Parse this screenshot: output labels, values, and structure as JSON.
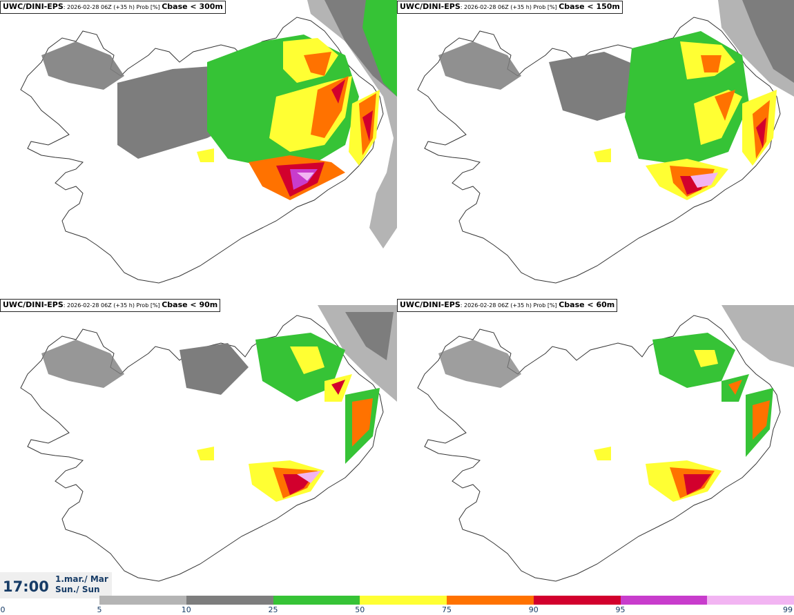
{
  "panels": [
    {
      "model": "UWC/DINI-EPS",
      "run_info": ": 2026-02-28 06Z (+35 h) Prob [%]",
      "variable": "Cbase < 300m"
    },
    {
      "model": "UWC/DINI-EPS",
      "run_info": ": 2026-02-28 06Z (+35 h) Prob [%]",
      "variable": "Cbase < 150m"
    },
    {
      "model": "UWC/DINI-EPS",
      "run_info": ": 2026-02-28 06Z (+35 h) Prob [%]",
      "variable": "Cbase < 90m"
    },
    {
      "model": "UWC/DINI-EPS",
      "run_info": ": 2026-02-28 06Z (+35 h) Prob [%]",
      "variable": "Cbase < 60m"
    }
  ],
  "valid_time": {
    "time": "17:00",
    "date_line1": "1.mar./ Mar",
    "date_line2": "Sun./ Sun"
  },
  "colorbar": {
    "labels": [
      "0",
      "5",
      "10",
      "25",
      "50",
      "75",
      "90",
      "95",
      "99"
    ],
    "colors": [
      "#b4b4b4",
      "#7d7d7d",
      "#36c336",
      "#ffff33",
      "#ff7200",
      "#d2002d",
      "#c83ccc",
      "#f2b4f2"
    ]
  },
  "icons": [
    "land-outline",
    "probability-shading"
  ]
}
